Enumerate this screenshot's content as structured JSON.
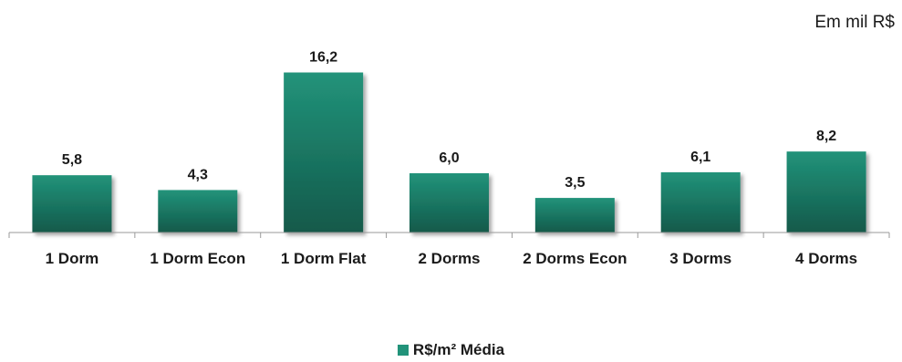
{
  "unit_note": "Em mil R$",
  "colors": {
    "bar_top": "#22937a",
    "bar_bottom": "#12594a",
    "axis": "#9a9a9a",
    "text": "#1a1a1a"
  },
  "chart_data": {
    "type": "bar",
    "categories": [
      "1 Dorm",
      "1 Dorm Econ",
      "1 Dorm Flat",
      "2 Dorms",
      "2 Dorms Econ",
      "3 Dorms",
      "4 Dorms"
    ],
    "series": [
      {
        "name": "R$/m² Média",
        "values": [
          5.8,
          4.3,
          16.2,
          6.0,
          3.5,
          6.1,
          8.2
        ]
      }
    ],
    "value_labels": [
      "5,8",
      "4,3",
      "16,2",
      "6,0",
      "3,5",
      "6,1",
      "8,2"
    ],
    "title": "",
    "xlabel": "",
    "ylabel": "",
    "ylim": [
      0,
      18
    ],
    "grid": false,
    "legend_position": "bottom"
  }
}
